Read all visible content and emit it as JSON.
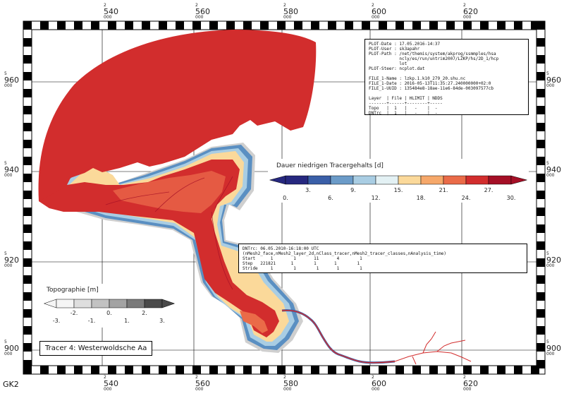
{
  "map": {
    "crs_label": "GK2",
    "x_ticks": [
      {
        "prefix": "2",
        "value": "540",
        "suffix": "000"
      },
      {
        "prefix": "2",
        "value": "560",
        "suffix": "000"
      },
      {
        "prefix": "2",
        "value": "580",
        "suffix": "000"
      },
      {
        "prefix": "2",
        "value": "600",
        "suffix": "000"
      },
      {
        "prefix": "2",
        "value": "620",
        "suffix": "000"
      }
    ],
    "y_ticks": [
      {
        "prefix": "5",
        "value": "960",
        "suffix": "000"
      },
      {
        "prefix": "5",
        "value": "940",
        "suffix": "000"
      },
      {
        "prefix": "5",
        "value": "920",
        "suffix": "000"
      },
      {
        "prefix": "5",
        "value": "900",
        "suffix": "000"
      }
    ]
  },
  "plot_info": {
    "lines": [
      "PLOT-Date : 17.05.2016-14:37",
      "PLOT-User : sk3apahr",
      "PLOT-Path : /net/themis/system/akprog/ssmmples/hsa",
      "            ncly/es/run/untrim2007/LZKP/hs/2D_1/hcp",
      "            lot",
      "PLOT-Steer: ncplot.dat",
      "",
      "FILE_1-Name : lzkp.1.k10_279_20.shu.nc",
      "FILE_1-Date : 2016-05-13T11:35:27.240000000+02:0",
      "FILE_1-UUID : 135484e8-18ae-11e6-84de-003097577cb",
      "",
      "Layer  | File | HLIMIT | NDDS",
      "-------+------+--------+-----",
      "Topo   |  1   |   -    |  -",
      "DNTrc  |  1   |   -    |  -"
    ]
  },
  "dntrc_info": {
    "lines": [
      "DNTrc: 06.05.2010-16:18:00 UTC",
      "(nMesh2_face,nMesh2_layer_2d,nClass_tracer,nMesh2_tracer_classes,nAnalysis_time)",
      "Start      1        1       11       4        1",
      "Step   221821      1        1       1        1",
      "Stride     1        1        1       1        1"
    ]
  },
  "tracer_legend": {
    "title": "Dauer niedrigen Tracergehalts [d]",
    "colors": [
      "#26287f",
      "#3a5fa8",
      "#6b9bc8",
      "#a9cde3",
      "#e3f1f4",
      "#fbd99a",
      "#f6a86a",
      "#ea6b48",
      "#d22d2d",
      "#a50f26"
    ],
    "ticks": [
      "0.",
      "3.",
      "6.",
      "9.",
      "12.",
      "15.",
      "18.",
      "21.",
      "24.",
      "27.",
      "30."
    ]
  },
  "topo_legend": {
    "title": "Topographie [m]",
    "colors": [
      "#f5f5f5",
      "#dedede",
      "#c2c2c2",
      "#a3a3a3",
      "#7a7a7a",
      "#4a4a4a"
    ],
    "ticks": [
      "-3.",
      "-2.",
      "-1.",
      "0.",
      "1.",
      "2.",
      "3."
    ]
  },
  "tracer_label": "Tracer 4: Westerwoldsche Aa"
}
